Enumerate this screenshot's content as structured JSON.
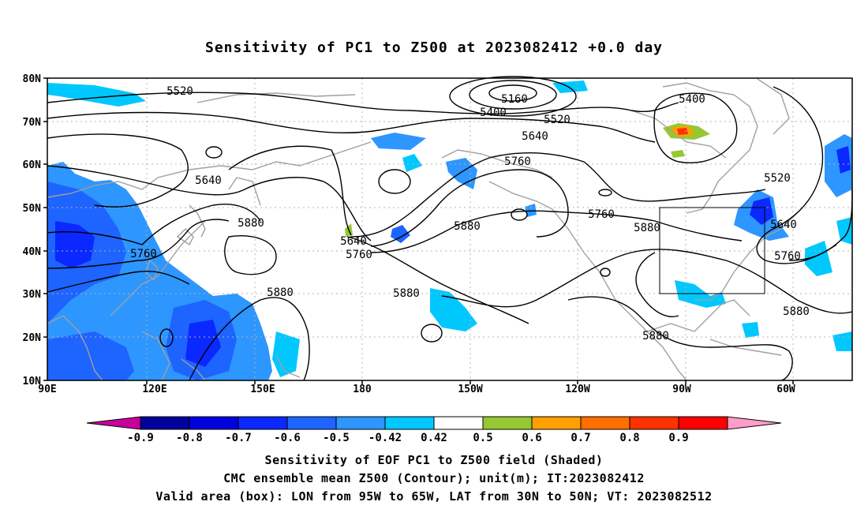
{
  "title": "Sensitivity of PC1 to Z500 at 2023082412 +0.0 day",
  "map": {
    "lat_ticks": [
      "80N",
      "70N",
      "60N",
      "50N",
      "40N",
      "30N",
      "20N",
      "10N"
    ],
    "lon_ticks": [
      "90E",
      "120E",
      "150E",
      "180",
      "150W",
      "120W",
      "90W",
      "60W"
    ],
    "extent": {
      "lon_min": 90,
      "lon_max": 315,
      "lat_min": 10,
      "lat_max": 80
    },
    "valid_box": {
      "lon_min": 265,
      "lon_max": 295,
      "lat_min": 30,
      "lat_max": 50
    },
    "contour_labels": [
      "5520",
      "5160",
      "5400",
      "5520",
      "5400",
      "5640",
      "5640",
      "5760",
      "5520",
      "5880",
      "5640",
      "5760",
      "5880",
      "5760",
      "5640",
      "5760",
      "5880",
      "5760",
      "5880",
      "5880",
      "5880",
      "5880"
    ]
  },
  "colorbar": {
    "labels": [
      "-0.9",
      "-0.8",
      "-0.7",
      "-0.6",
      "-0.5",
      "-0.42",
      "0.42",
      "0.5",
      "0.6",
      "0.7",
      "0.8",
      "0.9"
    ],
    "colors": [
      "#00009a",
      "#0000dc",
      "#0a28ff",
      "#1e64ff",
      "#2d96ff",
      "#00c8ff",
      "#ffffff",
      "#96c832",
      "#ffa000",
      "#ff6e00",
      "#ff3200",
      "#ff0000"
    ],
    "low_extend_color": "#c8009a",
    "high_extend_color": "#ff9ec8"
  },
  "captions": {
    "line1": "Sensitivity of EOF PC1 to Z500 field (Shaded)",
    "line2": "CMC ensemble mean Z500 (Contour); unit(m); IT:2023082412",
    "line3": "Valid area (box): LON from 95W to 65W, LAT from 30N to 50N; VT: 2023082512"
  }
}
